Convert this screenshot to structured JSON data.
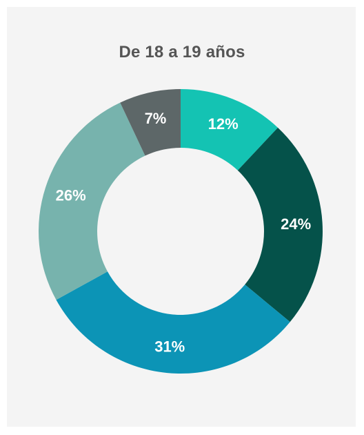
{
  "chart_data": {
    "type": "pie",
    "title": "De 18 a 19 años",
    "donut": true,
    "start_angle_deg": 0,
    "direction": "clockwise",
    "slices": [
      {
        "label": "12%",
        "value": 12,
        "color": "#14c3b3"
      },
      {
        "label": "24%",
        "value": 24,
        "color": "#05524a"
      },
      {
        "label": "31%",
        "value": 31,
        "color": "#0c94b6"
      },
      {
        "label": "26%",
        "value": 26,
        "color": "#77b3ad"
      },
      {
        "label": "7%",
        "value": 7,
        "color": "#5d6768"
      }
    ]
  },
  "colors": {
    "background": "#f4f4f4",
    "title": "#555555",
    "label": "#ffffff"
  }
}
